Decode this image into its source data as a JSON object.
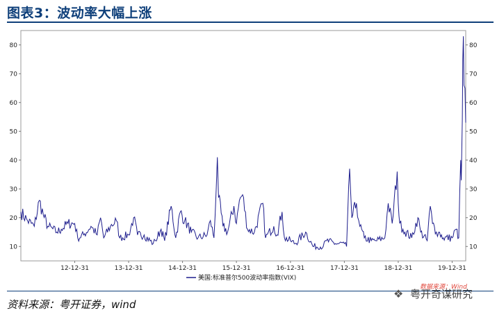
{
  "header": {
    "title": "图表3：波动率大幅上涨"
  },
  "footer": {
    "source": "资料来源：粤开证券，wind"
  },
  "watermark": {
    "tag": "数据来源：Wind",
    "text": "粤开奇谋研究",
    "icon": "wechat-icon"
  },
  "colors": {
    "accent": "#0e3f7a",
    "series": "#1c1c8c"
  },
  "chart_data": {
    "type": "line",
    "title": "",
    "xlabel": "",
    "ylabel": "",
    "ylim": [
      5,
      85
    ],
    "yticks": [
      10,
      20,
      30,
      40,
      50,
      60,
      70,
      80
    ],
    "y_tick_labels": [
      "10",
      "20",
      "30",
      "40",
      "50",
      "60",
      "70",
      "80"
    ],
    "x_tick_labels": [
      "12-12-31",
      "13-12-31",
      "14-12-31",
      "15-12-31",
      "16-12-31",
      "17-12-31",
      "18-12-31",
      "19-12-31"
    ],
    "xlim": [
      "2012-01-01",
      "2020-04-01"
    ],
    "grid": false,
    "legend": "bottom-left",
    "series": [
      {
        "name": "美国:标准普尔500波动率指数(VIX)",
        "x": [
          "2012-01-01",
          "2012-02-15",
          "2012-04-01",
          "2012-05-05",
          "2012-06-01",
          "2012-07-01",
          "2012-09-01",
          "2012-10-01",
          "2012-11-15",
          "2012-12-31",
          "2013-01-20",
          "2013-03-01",
          "2013-04-20",
          "2013-06-01",
          "2013-06-24",
          "2013-07-15",
          "2013-08-30",
          "2013-10-09",
          "2013-11-01",
          "2013-12-31",
          "2014-02-03",
          "2014-03-01",
          "2014-04-15",
          "2014-06-15",
          "2014-07-01",
          "2014-08-08",
          "2014-09-01",
          "2014-10-15",
          "2014-11-15",
          "2014-12-16",
          "2015-01-15",
          "2015-03-01",
          "2015-04-15",
          "2015-06-15",
          "2015-07-08",
          "2015-08-01",
          "2015-08-24",
          "2015-09-01",
          "2015-10-01",
          "2015-11-01",
          "2015-12-14",
          "2015-12-31",
          "2016-01-20",
          "2016-02-11",
          "2016-03-15",
          "2016-05-01",
          "2016-06-27",
          "2016-07-15",
          "2016-09-09",
          "2016-10-01",
          "2016-11-04",
          "2016-11-20",
          "2016-12-31",
          "2017-02-01",
          "2017-04-13",
          "2017-06-01",
          "2017-08-10",
          "2017-09-01",
          "2017-11-01",
          "2017-12-31",
          "2018-01-15",
          "2018-02-05",
          "2018-02-20",
          "2018-03-23",
          "2018-04-15",
          "2018-05-15",
          "2018-07-01",
          "2018-08-01",
          "2018-10-01",
          "2018-10-24",
          "2018-11-20",
          "2018-12-24",
          "2018-12-31",
          "2019-01-10",
          "2019-02-01",
          "2019-04-01",
          "2019-05-13",
          "2019-06-01",
          "2019-07-15",
          "2019-08-05",
          "2019-08-20",
          "2019-09-15",
          "2019-10-01",
          "2019-11-01",
          "2019-12-31",
          "2020-01-27",
          "2020-02-14",
          "2020-02-27",
          "2020-03-02",
          "2020-03-09",
          "2020-03-12",
          "2020-03-16",
          "2020-03-20",
          "2020-03-27",
          "2020-04-01"
        ],
        "y": [
          22,
          19,
          17,
          26,
          21,
          17,
          15,
          16,
          18,
          18,
          13,
          14,
          17,
          14,
          20,
          13,
          17,
          19,
          13,
          14,
          20,
          14,
          14,
          11,
          12,
          16,
          12,
          24,
          13,
          22,
          19,
          15,
          13,
          14,
          19,
          13,
          41,
          27,
          17,
          15,
          24,
          18,
          26,
          28,
          16,
          15,
          25,
          13,
          17,
          14,
          22,
          13,
          12,
          11,
          15,
          10,
          10,
          12,
          11,
          11,
          10,
          37,
          20,
          25,
          17,
          13,
          12,
          12,
          13,
          25,
          18,
          36,
          25,
          18,
          16,
          13,
          20,
          15,
          12,
          24,
          18,
          15,
          15,
          13,
          13,
          16,
          13,
          40,
          33,
          54,
          75,
          83,
          66,
          65,
          53
        ]
      }
    ]
  }
}
